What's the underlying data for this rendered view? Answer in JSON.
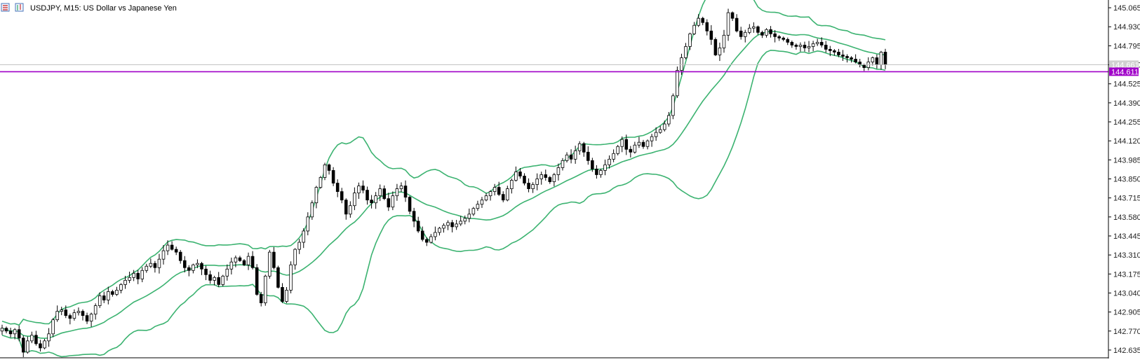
{
  "header": {
    "symbol_title": "USDJPY, M15:  US Dollar vs Japanese Yen"
  },
  "icons": [
    "bar-chart-icon",
    "candle-chart-icon"
  ],
  "colors": {
    "background": "#ffffff",
    "band": "#3cb371",
    "candle_outline": "#000000",
    "bull_fill": "#ffffff",
    "bear_fill": "#000000",
    "price_line": "#a000c8",
    "bid_line": "#c0c0c0",
    "axis_text": "#222222"
  },
  "price_scale": {
    "ticks": [
      "145.065",
      "144.930",
      "144.795",
      "144.660",
      "144.525",
      "144.390",
      "144.255",
      "144.120",
      "143.985",
      "143.850",
      "143.715",
      "143.580",
      "143.445",
      "143.310",
      "143.175",
      "143.040",
      "142.905",
      "142.770",
      "142.635"
    ]
  },
  "current_price": {
    "label": "144.611",
    "value": 144.611
  },
  "bid_label": {
    "label": "144.661",
    "value": 144.661
  },
  "chart_data": {
    "type": "candlestick",
    "symbol": "USDJPY",
    "timeframe": "M15",
    "title": "USDJPY, M15:  US Dollar vs Japanese Yen",
    "ylim": [
      142.58,
      145.12
    ],
    "grid": false,
    "indicator": "Bollinger Bands",
    "closes": [
      142.79,
      142.77,
      142.75,
      142.78,
      142.72,
      142.62,
      142.7,
      142.74,
      142.68,
      142.65,
      142.7,
      142.75,
      142.85,
      142.91,
      142.92,
      142.88,
      142.86,
      142.9,
      142.91,
      142.88,
      142.84,
      142.89,
      142.95,
      143.02,
      142.99,
      143.05,
      143.03,
      143.06,
      143.1,
      143.13,
      143.15,
      143.18,
      143.14,
      143.2,
      143.23,
      143.25,
      143.22,
      143.28,
      143.34,
      143.38,
      143.35,
      143.33,
      143.27,
      143.22,
      143.2,
      143.24,
      143.25,
      143.21,
      143.17,
      143.13,
      143.15,
      143.1,
      143.16,
      143.21,
      143.26,
      143.29,
      143.27,
      143.24,
      143.3,
      143.22,
      143.03,
      142.97,
      143.16,
      143.33,
      143.22,
      143.08,
      142.98,
      143.06,
      143.24,
      143.35,
      143.4,
      143.48,
      143.58,
      143.68,
      143.79,
      143.86,
      143.95,
      143.91,
      143.82,
      143.76,
      143.7,
      143.6,
      143.66,
      143.75,
      143.8,
      143.77,
      143.7,
      143.68,
      143.73,
      143.78,
      143.71,
      143.65,
      143.73,
      143.78,
      143.8,
      143.72,
      143.62,
      143.55,
      143.48,
      143.42,
      143.4,
      143.44,
      143.47,
      143.5,
      143.52,
      143.54,
      143.51,
      143.53,
      143.55,
      143.57,
      143.6,
      143.64,
      143.67,
      143.7,
      143.73,
      143.76,
      143.79,
      143.74,
      143.7,
      143.78,
      143.84,
      143.9,
      143.87,
      143.82,
      143.78,
      143.81,
      143.85,
      143.88,
      143.86,
      143.83,
      143.88,
      143.93,
      143.98,
      144.02,
      143.99,
      144.05,
      144.1,
      144.04,
      143.98,
      143.92,
      143.88,
      143.91,
      143.95,
      143.99,
      144.03,
      144.08,
      144.13,
      144.06,
      144.04,
      144.09,
      144.11,
      144.08,
      144.12,
      144.15,
      144.18,
      144.2,
      144.24,
      144.3,
      144.44,
      144.62,
      144.71,
      144.79,
      144.88,
      144.94,
      144.99,
      144.96,
      144.9,
      144.84,
      144.73,
      144.78,
      144.87,
      145.03,
      144.99,
      144.9,
      144.86,
      144.89,
      144.92,
      144.93,
      144.89,
      144.87,
      144.91,
      144.88,
      144.86,
      144.85,
      144.84,
      144.82,
      144.8,
      144.79,
      144.8,
      144.78,
      144.79,
      144.81,
      144.82,
      144.8,
      144.77,
      144.76,
      144.75,
      144.73,
      144.72,
      144.71,
      144.7,
      144.68,
      144.66,
      144.64,
      144.68,
      144.71,
      144.66,
      144.75,
      144.661
    ]
  }
}
